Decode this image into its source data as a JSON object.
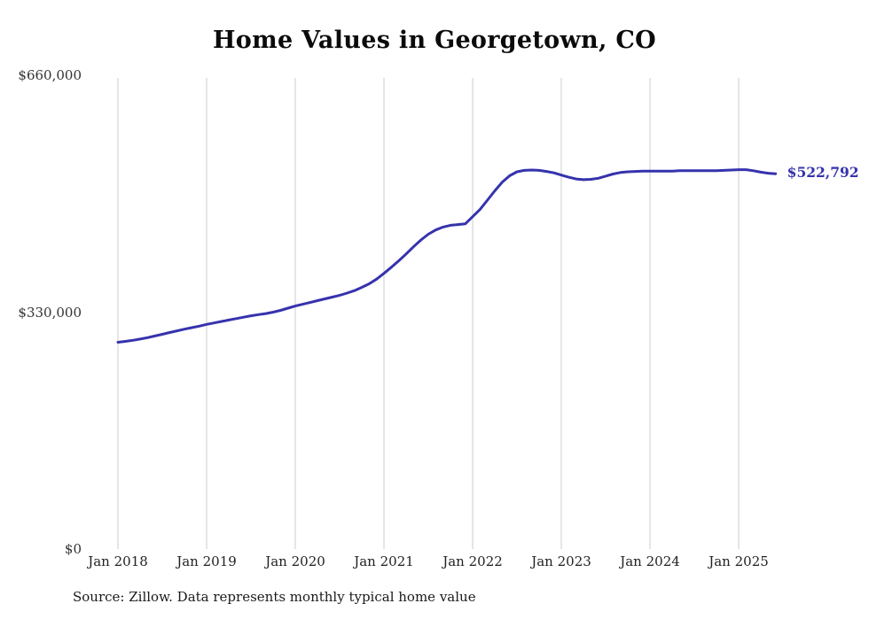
{
  "page": {
    "source_note": "Source: Zillow. Data represents monthly typical home value"
  },
  "chart_data": {
    "type": "line",
    "title": "Home Values in Georgetown, CO",
    "xlabel": "",
    "ylabel": "",
    "x_start": "Jan 2018",
    "frequency": "monthly",
    "x_tick_labels": [
      "Jan 2018",
      "Jan 2019",
      "Jan 2020",
      "Jan 2021",
      "Jan 2022",
      "Jan 2023",
      "Jan 2024",
      "Jan 2025"
    ],
    "y_tick_labels": [
      "$0",
      "$330,000",
      "$660,000"
    ],
    "ylim": [
      0,
      660000
    ],
    "grid": "vertical-only",
    "legend": "none",
    "annotation": {
      "text": "$522,792",
      "value": 522792
    },
    "colors": {
      "line": "#3533ad",
      "grid": "#cccccc"
    },
    "series": [
      {
        "name": "Typical home value",
        "values": [
          288000,
          289300,
          290800,
          292500,
          294500,
          296800,
          299200,
          301600,
          304000,
          306300,
          308400,
          310500,
          313000,
          315000,
          317000,
          319000,
          321000,
          323000,
          325000,
          326500,
          328000,
          330000,
          332500,
          335500,
          338500,
          341000,
          343500,
          346000,
          348500,
          351000,
          353500,
          356500,
          360000,
          364500,
          369500,
          376000,
          384000,
          392500,
          401500,
          411000,
          421000,
          430500,
          438500,
          444500,
          448500,
          451000,
          452000,
          453000,
          463000,
          473000,
          486000,
          499000,
          511000,
          520000,
          525500,
          527500,
          528000,
          527500,
          526000,
          524000,
          521000,
          518000,
          515500,
          514500,
          515000,
          516500,
          519500,
          522500,
          524500,
          525500,
          526000,
          526500,
          526500,
          526500,
          526500,
          526500,
          527000,
          527000,
          527000,
          527000,
          527000,
          527000,
          527500,
          528000,
          528500,
          528500,
          527000,
          525000,
          523500,
          522792
        ]
      }
    ]
  }
}
